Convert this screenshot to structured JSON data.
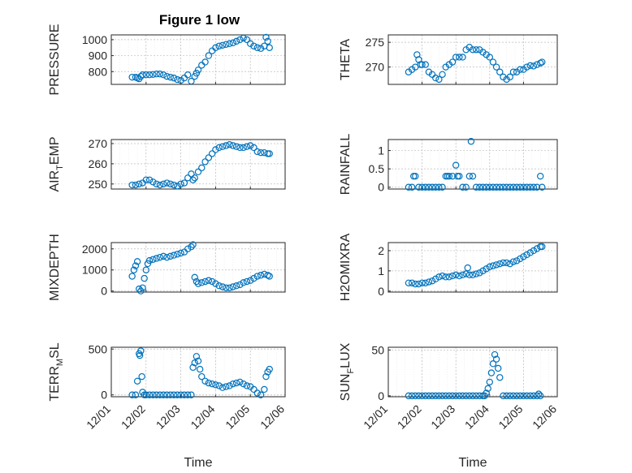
{
  "title": "Figure 1 low",
  "x_tick_labels": [
    "12/01",
    "12/02",
    "12/03",
    "12/04",
    "12/05",
    "12/06"
  ],
  "marker_color": "#0072BD",
  "chart_data": [
    {
      "id": "pressure",
      "type": "scatter",
      "title": "Figure 1 low",
      "ylabel_main": "PRESSURE",
      "ylabel_sub": "",
      "ylabel_tail": "",
      "xlabel": "",
      "xlim_days": [
        0,
        5
      ],
      "ylim": [
        720,
        1030
      ],
      "yticks": [
        800,
        900,
        1000
      ],
      "grid": true,
      "x": [
        0.6,
        0.7,
        0.75,
        0.8,
        0.85,
        0.9,
        1.0,
        1.1,
        1.2,
        1.3,
        1.4,
        1.5,
        1.6,
        1.7,
        1.8,
        1.9,
        2.0,
        2.1,
        2.2,
        2.3,
        2.4,
        2.45,
        2.5,
        2.6,
        2.7,
        2.8,
        2.9,
        3.0,
        3.1,
        3.2,
        3.3,
        3.4,
        3.5,
        3.6,
        3.7,
        3.8,
        3.9,
        4.0,
        4.1,
        4.2,
        4.3,
        4.4,
        4.45,
        4.5,
        4.55
      ],
      "y": [
        765,
        765,
        760,
        755,
        770,
        780,
        780,
        780,
        782,
        785,
        785,
        780,
        770,
        765,
        760,
        750,
        745,
        760,
        780,
        740,
        770,
        790,
        810,
        840,
        860,
        900,
        930,
        950,
        960,
        965,
        970,
        975,
        980,
        990,
        1000,
        1010,
        1000,
        975,
        960,
        950,
        945,
        960,
        1015,
        990,
        950
      ]
    },
    {
      "id": "theta",
      "type": "scatter",
      "ylabel_main": "THETA",
      "ylabel_sub": "",
      "ylabel_tail": "",
      "xlabel": "",
      "xlim_days": [
        0,
        5
      ],
      "ylim": [
        266.5,
        276.5
      ],
      "yticks": [
        270,
        275
      ],
      "grid": true,
      "x": [
        0.6,
        0.7,
        0.8,
        0.85,
        0.9,
        0.95,
        1.0,
        1.1,
        1.2,
        1.3,
        1.4,
        1.5,
        1.6,
        1.7,
        1.8,
        1.9,
        2.0,
        2.1,
        2.2,
        2.3,
        2.4,
        2.5,
        2.6,
        2.7,
        2.8,
        2.9,
        3.0,
        3.1,
        3.2,
        3.3,
        3.4,
        3.5,
        3.6,
        3.7,
        3.8,
        3.9,
        4.0,
        4.1,
        4.2,
        4.3,
        4.4,
        4.5,
        4.55
      ],
      "y": [
        269,
        269.5,
        270,
        272.5,
        271.5,
        270.5,
        270.5,
        270.5,
        269,
        268.5,
        267.8,
        267.5,
        268.5,
        270,
        270.5,
        271,
        272,
        272,
        272,
        273.5,
        274,
        273.5,
        273.5,
        273.5,
        273,
        272.5,
        272,
        271,
        270,
        269,
        268,
        267.5,
        268,
        269,
        269,
        269.5,
        269.5,
        270,
        270.3,
        270.2,
        270.5,
        270.8,
        271
      ]
    },
    {
      "id": "air_temp",
      "type": "scatter",
      "ylabel_main": "AIR",
      "ylabel_sub": "T",
      "ylabel_tail": "EMP",
      "xlabel": "",
      "xlim_days": [
        0,
        5
      ],
      "ylim": [
        247.5,
        272
      ],
      "yticks": [
        250,
        260,
        270
      ],
      "grid": true,
      "x": [
        0.6,
        0.7,
        0.8,
        0.9,
        1.0,
        1.1,
        1.2,
        1.3,
        1.4,
        1.5,
        1.6,
        1.7,
        1.8,
        1.9,
        2.0,
        2.1,
        2.2,
        2.3,
        2.35,
        2.4,
        2.5,
        2.6,
        2.7,
        2.8,
        2.9,
        3.0,
        3.1,
        3.2,
        3.3,
        3.4,
        3.5,
        3.6,
        3.7,
        3.8,
        3.9,
        4.0,
        4.1,
        4.2,
        4.3,
        4.4,
        4.5,
        4.55
      ],
      "y": [
        249.5,
        249.5,
        250,
        250.5,
        252,
        252,
        251,
        250,
        249.5,
        250,
        250.5,
        250,
        249.5,
        249,
        250,
        250.5,
        253,
        255,
        252,
        253,
        256,
        258,
        261,
        263,
        265,
        267,
        268,
        268.5,
        269,
        269.5,
        269,
        268.5,
        268,
        268,
        268.5,
        269,
        268,
        266,
        265.5,
        265.5,
        265,
        265
      ]
    },
    {
      "id": "rainfall",
      "type": "scatter",
      "ylabel_main": "RAINFALL",
      "ylabel_sub": "",
      "ylabel_tail": "",
      "xlabel": "",
      "xlim_days": [
        0,
        5
      ],
      "ylim": [
        -0.05,
        1.3
      ],
      "yticks": [
        0,
        0.5,
        1
      ],
      "tick_labels": [
        "0",
        "0.5",
        "1"
      ],
      "grid": true,
      "x": [
        0.6,
        0.7,
        0.75,
        0.8,
        0.9,
        1.0,
        1.1,
        1.2,
        1.3,
        1.4,
        1.5,
        1.6,
        1.7,
        1.75,
        1.8,
        1.9,
        2.0,
        2.05,
        2.1,
        2.2,
        2.3,
        2.4,
        2.45,
        2.5,
        2.6,
        2.7,
        2.8,
        2.9,
        3.0,
        3.1,
        3.2,
        3.3,
        3.4,
        3.5,
        3.6,
        3.7,
        3.8,
        3.9,
        4.0,
        4.1,
        4.2,
        4.3,
        4.4,
        4.5,
        4.55
      ],
      "y": [
        0,
        0,
        0.3,
        0.3,
        0,
        0,
        0,
        0,
        0,
        0,
        0,
        0,
        0.3,
        0.3,
        0.3,
        0.3,
        0.6,
        0.3,
        0.3,
        0,
        0,
        0.3,
        1.25,
        0.3,
        0,
        0,
        0,
        0,
        0,
        0,
        0,
        0,
        0,
        0,
        0,
        0,
        0,
        0,
        0,
        0,
        0,
        0,
        0,
        0.3,
        0
      ]
    },
    {
      "id": "mixdepth",
      "type": "scatter",
      "ylabel_main": "MIXDEPTH",
      "ylabel_sub": "",
      "ylabel_tail": "",
      "xlabel": "",
      "xlim_days": [
        0,
        5
      ],
      "ylim": [
        -50,
        2300
      ],
      "yticks": [
        0,
        1000,
        2000
      ],
      "grid": true,
      "x": [
        0.6,
        0.65,
        0.7,
        0.75,
        0.8,
        0.85,
        0.9,
        0.95,
        1.0,
        1.05,
        1.1,
        1.2,
        1.3,
        1.4,
        1.5,
        1.6,
        1.7,
        1.8,
        1.9,
        2.0,
        2.1,
        2.2,
        2.3,
        2.35,
        2.4,
        2.45,
        2.5,
        2.6,
        2.7,
        2.8,
        2.9,
        3.0,
        3.1,
        3.2,
        3.3,
        3.4,
        3.5,
        3.6,
        3.7,
        3.8,
        3.9,
        4.0,
        4.1,
        4.2,
        4.3,
        4.4,
        4.5,
        4.55
      ],
      "y": [
        700,
        1000,
        1200,
        1400,
        100,
        0,
        150,
        600,
        1000,
        1300,
        1450,
        1500,
        1550,
        1600,
        1650,
        1600,
        1650,
        1700,
        1750,
        1800,
        1850,
        2000,
        2100,
        2200,
        650,
        450,
        350,
        400,
        450,
        500,
        450,
        350,
        250,
        200,
        150,
        150,
        200,
        250,
        300,
        400,
        450,
        500,
        600,
        700,
        750,
        800,
        750,
        700
      ]
    },
    {
      "id": "h2omixra",
      "type": "scatter",
      "ylabel_main": "H2OMIXRA",
      "ylabel_sub": "",
      "ylabel_tail": "",
      "xlabel": "",
      "xlim_days": [
        0,
        5
      ],
      "ylim": [
        -0.05,
        2.4
      ],
      "yticks": [
        0,
        1,
        2
      ],
      "grid": true,
      "x": [
        0.6,
        0.7,
        0.8,
        0.9,
        1.0,
        1.1,
        1.2,
        1.3,
        1.4,
        1.5,
        1.6,
        1.7,
        1.8,
        1.9,
        2.0,
        2.1,
        2.2,
        2.3,
        2.35,
        2.4,
        2.5,
        2.6,
        2.7,
        2.8,
        2.9,
        3.0,
        3.1,
        3.2,
        3.3,
        3.4,
        3.5,
        3.6,
        3.7,
        3.8,
        3.9,
        4.0,
        4.1,
        4.2,
        4.3,
        4.4,
        4.5,
        4.55
      ],
      "y": [
        0.4,
        0.4,
        0.35,
        0.35,
        0.4,
        0.4,
        0.45,
        0.5,
        0.6,
        0.7,
        0.75,
        0.7,
        0.7,
        0.75,
        0.8,
        0.75,
        0.8,
        0.85,
        1.15,
        0.8,
        0.8,
        0.85,
        0.9,
        1.0,
        1.1,
        1.2,
        1.25,
        1.3,
        1.35,
        1.4,
        1.4,
        1.35,
        1.45,
        1.5,
        1.6,
        1.7,
        1.8,
        1.9,
        2.0,
        2.1,
        2.2,
        2.2
      ]
    },
    {
      "id": "terr_msl",
      "type": "scatter",
      "ylabel_main": "TERR",
      "ylabel_sub": "M",
      "ylabel_tail": "SL",
      "xlabel": "Time",
      "xlim_days": [
        0,
        5
      ],
      "ylim": [
        -20,
        520
      ],
      "yticks": [
        0,
        500
      ],
      "grid": true,
      "x": [
        0.6,
        0.7,
        0.75,
        0.8,
        0.82,
        0.85,
        0.88,
        0.9,
        0.95,
        1.0,
        1.1,
        1.2,
        1.3,
        1.4,
        1.5,
        1.6,
        1.7,
        1.8,
        1.9,
        2.0,
        2.1,
        2.2,
        2.3,
        2.35,
        2.4,
        2.45,
        2.5,
        2.55,
        2.6,
        2.7,
        2.8,
        2.9,
        3.0,
        3.1,
        3.2,
        3.3,
        3.4,
        3.5,
        3.6,
        3.7,
        3.8,
        3.9,
        4.0,
        4.1,
        4.2,
        4.3,
        4.4,
        4.45,
        4.5,
        4.55
      ],
      "y": [
        0,
        0,
        150,
        450,
        430,
        480,
        200,
        30,
        0,
        0,
        0,
        0,
        0,
        0,
        0,
        0,
        0,
        0,
        0,
        0,
        0,
        0,
        0,
        300,
        350,
        420,
        370,
        280,
        200,
        150,
        130,
        120,
        110,
        100,
        80,
        90,
        100,
        120,
        130,
        140,
        120,
        100,
        90,
        60,
        20,
        0,
        60,
        200,
        250,
        280
      ]
    },
    {
      "id": "sun_flux",
      "type": "scatter",
      "ylabel_main": "SUN",
      "ylabel_sub": "F",
      "ylabel_tail": "LUX",
      "xlabel": "Time",
      "xlim_days": [
        0,
        5
      ],
      "ylim": [
        -1,
        53
      ],
      "yticks": [
        0,
        50
      ],
      "grid": true,
      "x": [
        0.6,
        0.7,
        0.8,
        0.9,
        1.0,
        1.1,
        1.2,
        1.3,
        1.4,
        1.5,
        1.6,
        1.7,
        1.8,
        1.9,
        2.0,
        2.1,
        2.2,
        2.3,
        2.4,
        2.5,
        2.6,
        2.7,
        2.8,
        2.85,
        2.9,
        2.95,
        3.0,
        3.05,
        3.1,
        3.15,
        3.2,
        3.25,
        3.3,
        3.4,
        3.5,
        3.6,
        3.7,
        3.8,
        3.9,
        4.0,
        4.1,
        4.2,
        4.3,
        4.4,
        4.45,
        4.5
      ],
      "y": [
        0,
        0,
        0,
        0,
        0,
        0,
        0,
        0,
        0,
        0,
        0,
        0,
        0,
        0,
        0,
        0,
        0,
        0,
        0,
        0,
        0,
        0,
        0,
        0,
        3,
        8,
        15,
        25,
        35,
        45,
        40,
        30,
        20,
        0,
        0,
        0,
        0,
        0,
        0,
        0,
        0,
        0,
        0,
        0,
        2,
        0
      ]
    }
  ]
}
